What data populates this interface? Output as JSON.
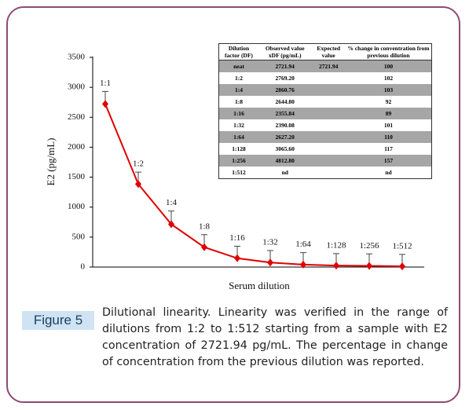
{
  "chart_data": {
    "type": "line",
    "categories": [
      "1:1",
      "1:2",
      "1:4",
      "1:8",
      "1:16",
      "1:32",
      "1:64",
      "1:128",
      "1:256",
      "1:512"
    ],
    "values": [
      2722,
      1385,
      715,
      331,
      147,
      75,
      41,
      24,
      19,
      12
    ],
    "errors": [
      210,
      200,
      220,
      210,
      200,
      200,
      200,
      200,
      200,
      200
    ],
    "color": "#e00000",
    "ylim": [
      0,
      3500
    ],
    "yticks": [
      0,
      500,
      1000,
      1500,
      2000,
      2500,
      3000,
      3500
    ],
    "xlabel": "Serum dilution",
    "ylabel": "E2 (pg/mL)"
  },
  "table": {
    "header": [
      "Dilution factor (DF)",
      "Observed value xDF (pg/mL)",
      "Expected value",
      "% change in conventration from previous dilution"
    ],
    "rows": [
      [
        "neat",
        "2721.94",
        "2721.94",
        "100"
      ],
      [
        "1:2",
        "2769.20",
        "",
        "102"
      ],
      [
        "1:4",
        "2860.76",
        "",
        "103"
      ],
      [
        "1:8",
        "2644.80",
        "",
        "92"
      ],
      [
        "1:16",
        "2355.84",
        "",
        "89"
      ],
      [
        "1:32",
        "2390.08",
        "",
        "101"
      ],
      [
        "1:64",
        "2627.20",
        "",
        "110"
      ],
      [
        "1:128",
        "3065.60",
        "",
        "117"
      ],
      [
        "1:256",
        "4812.80",
        "",
        "157"
      ],
      [
        "1:512",
        "nd",
        "",
        "nd"
      ]
    ]
  },
  "caption": {
    "label": "Figure 5",
    "text": "Dilutional linearity. Linearity was verified in the range of dilutions from 1:2 to 1:512 starting from a sample with E2 concentration of 2721.94 pg/mL. The percentage in change of concentration from the previous dilution was reported."
  }
}
